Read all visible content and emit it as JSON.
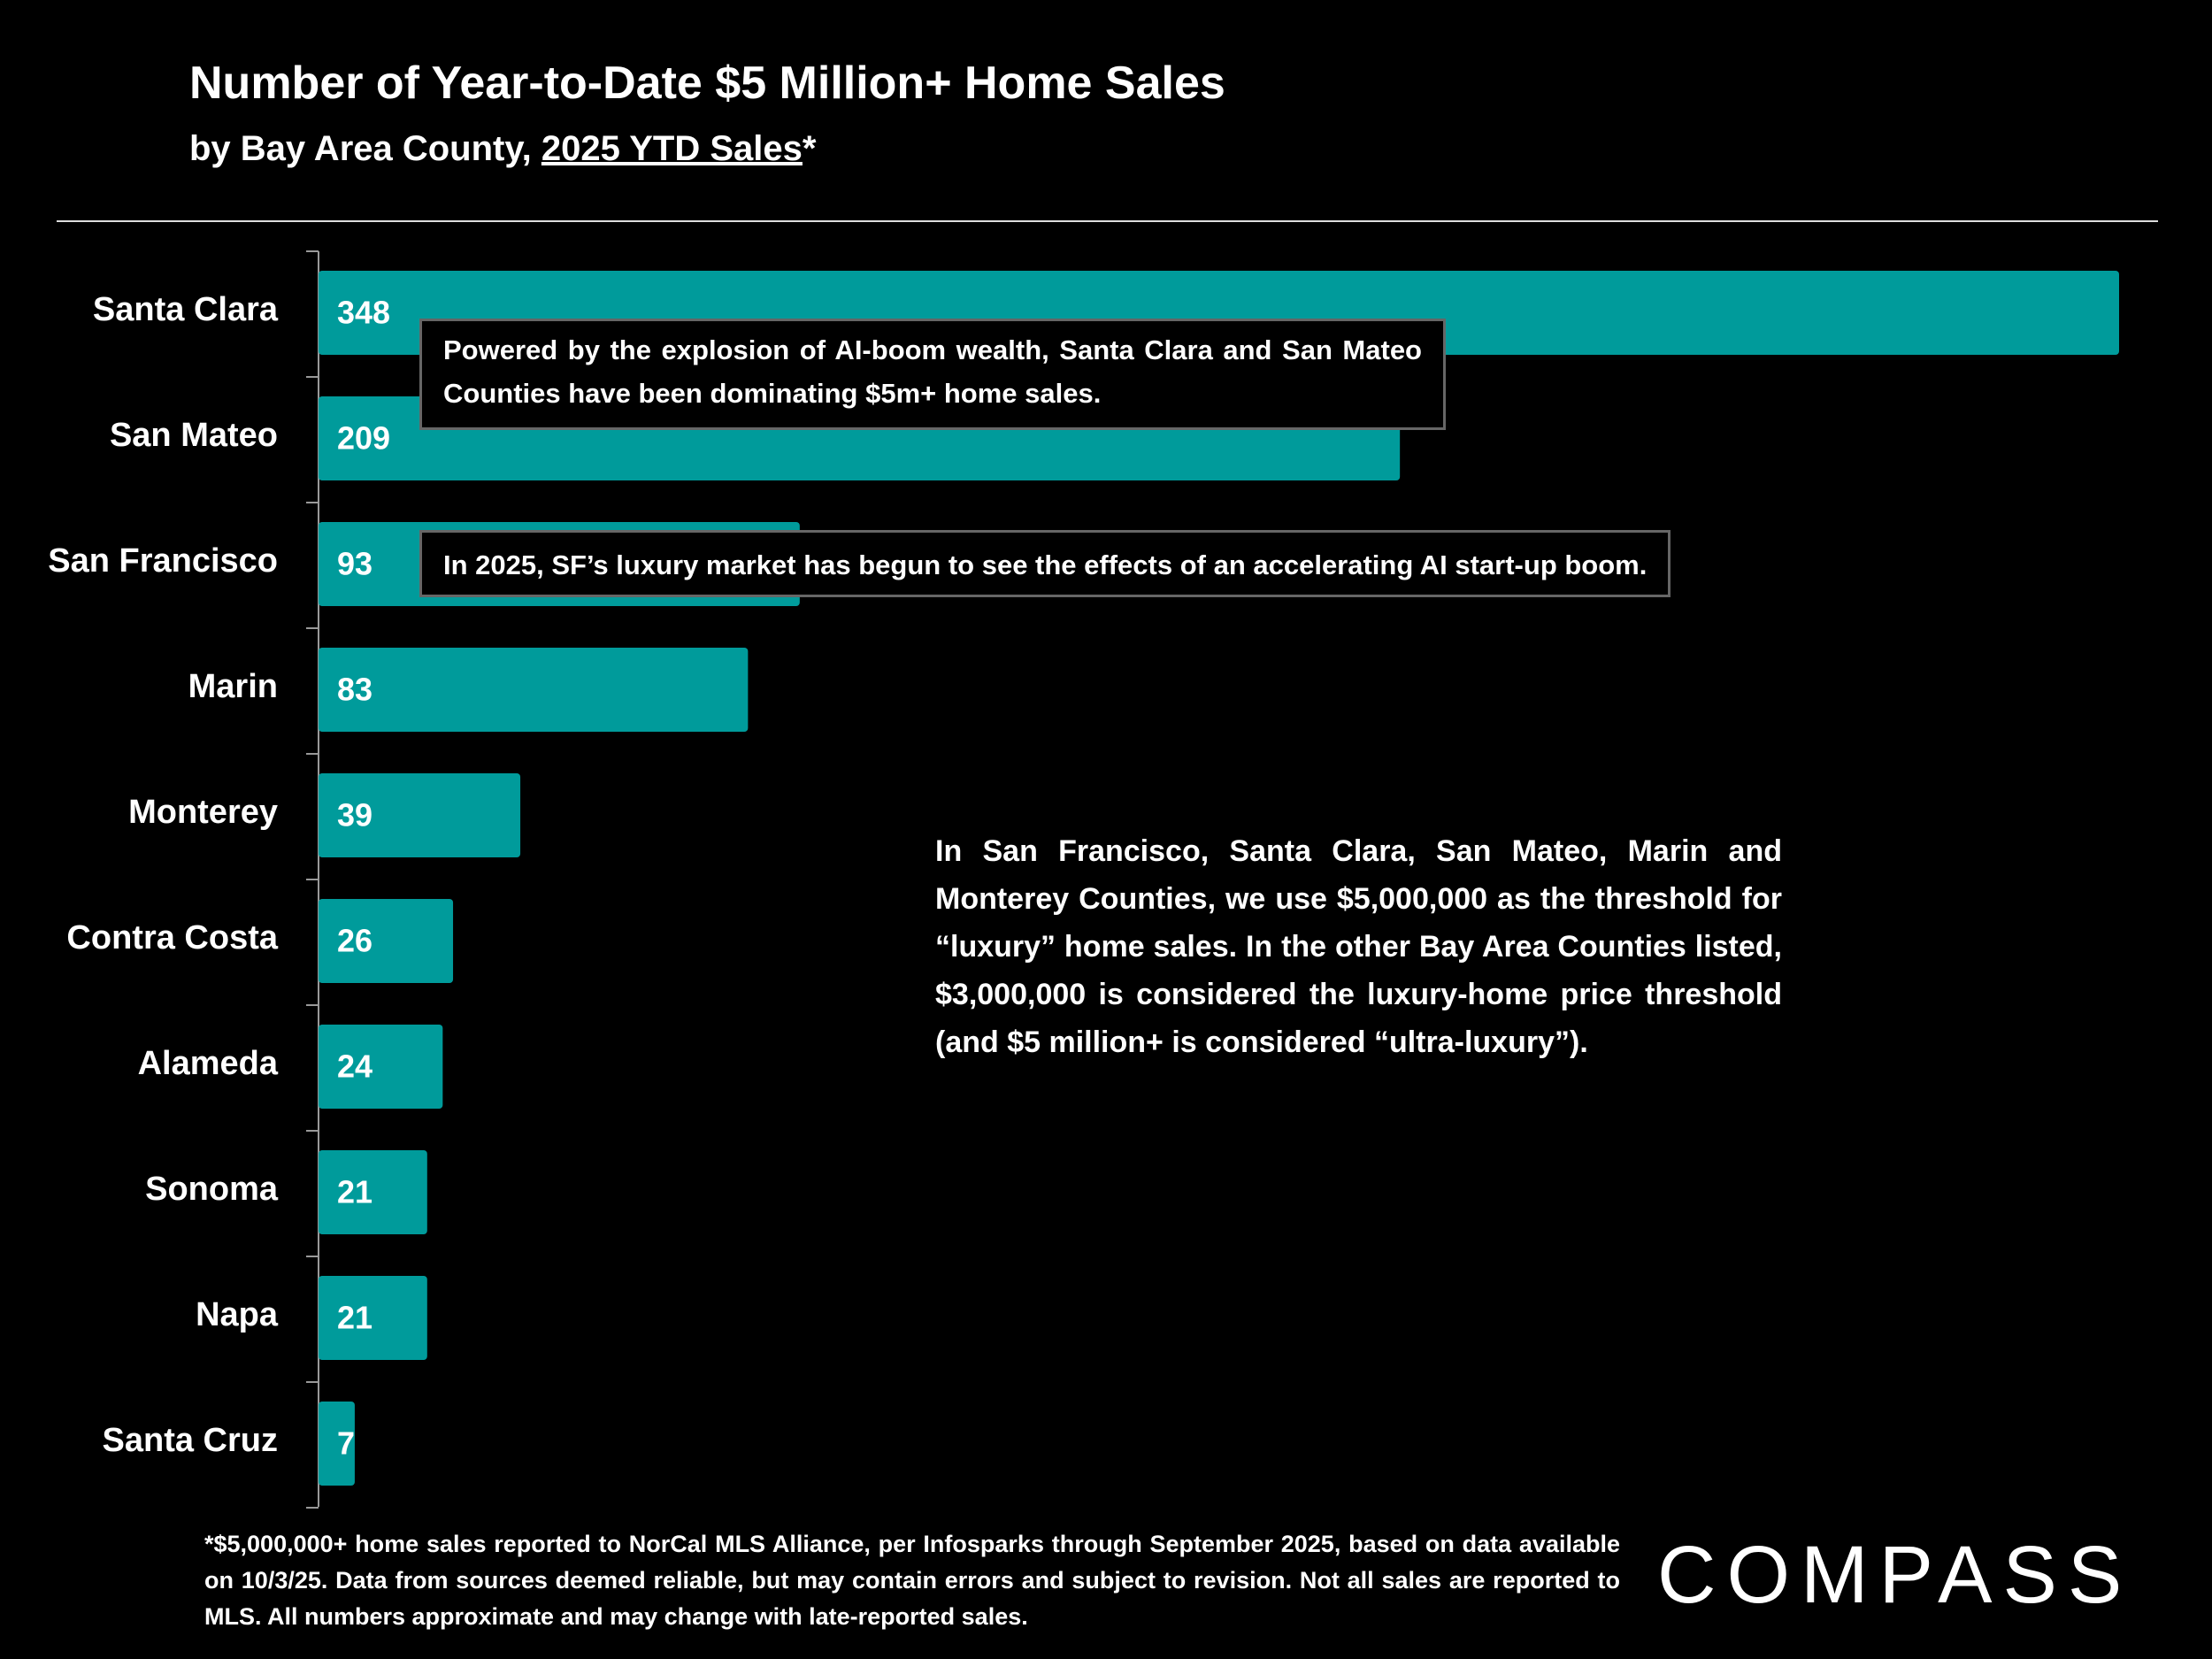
{
  "chart_data": {
    "type": "bar",
    "orientation": "horizontal",
    "title": "Number of Year-to-Date $5 Million+ Home Sales",
    "subtitle": [
      "by Bay Area County, ",
      "2025 YTD Sales",
      "*"
    ],
    "categories": [
      "Santa Clara",
      "San Mateo",
      "San Francisco",
      "Marin",
      "Monterey",
      "Contra Costa",
      "Alameda",
      "Sonoma",
      "Napa",
      "Santa Cruz"
    ],
    "values": [
      348,
      209,
      93,
      83,
      39,
      26,
      24,
      21,
      21,
      7
    ],
    "color": "#009b9b",
    "annotations": [
      "Powered by the explosion of AI-boom wealth, Santa Clara and San Mateo Counties have been dominating $5m+ home sales.",
      "In 2025, SF’s luxury market has begun to see the effects of an accelerating AI start-up boom."
    ],
    "note": "In San Francisco, Santa Clara, San Mateo, Marin and Monterey Counties, we use $5,000,000 as the threshold for “luxury” home sales. In the other Bay Area Counties listed, $3,000,000 is considered the luxury-home price threshold (and $5 million+ is considered “ultra-luxury”).",
    "footnote": "*$5,000,000+ home sales reported to NorCal MLS Alliance, per Infosparks through September 2025, based on data available on 10/3/25. Data from sources deemed reliable, but may contain errors and subject to revision. Not all sales are reported to MLS. All numbers approximate and may change with late-reported sales.",
    "brand": "COMPASS"
  }
}
